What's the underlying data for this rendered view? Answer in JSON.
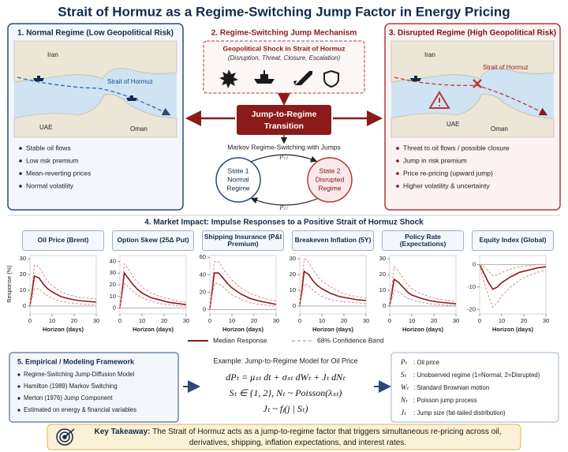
{
  "title": "Strait of Hormuz as a Regime-Switching Jump Factor in Energy Pricing",
  "normal_regime": {
    "heading": "1. Normal Regime (Low Geopolitical Risk)",
    "map_labels": [
      "Iran",
      "Strait of Hormuz",
      "UAE",
      "Oman"
    ],
    "bullets": [
      "Stable oil flows",
      "Low risk premium",
      "Mean-reverting prices",
      "Normal volatility"
    ]
  },
  "mechanism": {
    "heading": "2. Regime-Switching Jump Mechanism",
    "shock_title": "Geopolitical Shock in Strait of Hormuz",
    "shock_subtitle": "(Disruption, Threat, Closure, Escalation)",
    "transition": [
      "Jump-to-Regime",
      "Transition"
    ],
    "markov_title": "Markov Regime-Switching with Jumps",
    "state_1": [
      "State 1",
      "Normal",
      "Regime"
    ],
    "state_2": [
      "State 2",
      "Disrupted",
      "Regime"
    ],
    "p12": "p₁₂",
    "p21": "p₂₁"
  },
  "disrupted_regime": {
    "heading": "3. Disrupted Regime (High Geopolitical Risk)",
    "map_labels": [
      "Iran",
      "Strait of Hormuz",
      "UAE",
      "Oman"
    ],
    "bullets": [
      "Threat to oil flows / possible closure",
      "Jump in risk premium",
      "Price re-pricing (upward jump)",
      "Higher volatility & uncertainty"
    ]
  },
  "impulse_responses": {
    "heading": "4. Market Impact: Impulse Responses to a Positive Strait of Hormuz Shock",
    "y_label": "Response (%)",
    "legend": [
      {
        "label": "Median Response",
        "color": "#8b1a1a",
        "dashed": false
      },
      {
        "label": "68% Confidence Band",
        "color": "#e08a8a",
        "dashed": true
      }
    ]
  },
  "chart_data": [
    {
      "type": "line",
      "title": "Oil Price (Brent)",
      "x_label": "Horizon (days)",
      "x": [
        0,
        2,
        4,
        6,
        8,
        10,
        14,
        18,
        22,
        26,
        30
      ],
      "xlim": [
        0,
        30
      ],
      "xticks": [
        0,
        10,
        20,
        30
      ],
      "ylim": [
        -5,
        32
      ],
      "yticks": [
        0,
        10,
        20,
        30
      ],
      "series": [
        {
          "color": "#8b1a1a",
          "dashed": false,
          "values": [
            0,
            19,
            18,
            14,
            11,
            9,
            6,
            4.5,
            3.5,
            3,
            2.5
          ]
        },
        {
          "color": "#e08a8a",
          "dashed": true,
          "values": [
            0,
            26,
            25,
            20,
            16,
            13,
            9,
            7,
            5.5,
            5,
            4.5
          ]
        },
        {
          "color": "#e08a8a",
          "dashed": true,
          "values": [
            0,
            11,
            11,
            8.5,
            6.5,
            5,
            3,
            2,
            1.5,
            1,
            1
          ]
        }
      ]
    },
    {
      "type": "line",
      "title": "Option Skew (25Δ Put)",
      "x_label": "Horizon (days)",
      "x": [
        0,
        2,
        4,
        6,
        8,
        10,
        14,
        18,
        22,
        26,
        30
      ],
      "xlim": [
        0,
        30
      ],
      "xticks": [
        0,
        10,
        20,
        30
      ],
      "ylim": [
        -5,
        45
      ],
      "yticks": [
        0,
        10,
        20,
        30,
        40
      ],
      "series": [
        {
          "color": "#8b1a1a",
          "dashed": false,
          "values": [
            0,
            30,
            25,
            20,
            16,
            13,
            9,
            7,
            5,
            4,
            3
          ]
        },
        {
          "color": "#e08a8a",
          "dashed": true,
          "values": [
            0,
            38,
            33,
            27,
            22,
            18,
            13,
            10,
            8,
            6,
            5
          ]
        },
        {
          "color": "#e08a8a",
          "dashed": true,
          "values": [
            0,
            21,
            18,
            14,
            11,
            9,
            6,
            4,
            3,
            2,
            1.5
          ]
        }
      ]
    },
    {
      "type": "line",
      "title": "Shipping Insurance (P&I Premium)",
      "x_label": "Horizon (days)",
      "x": [
        0,
        2,
        4,
        6,
        8,
        10,
        14,
        18,
        22,
        26,
        30
      ],
      "xlim": [
        0,
        30
      ],
      "xticks": [
        0,
        10,
        20,
        30
      ],
      "ylim": [
        -5,
        62
      ],
      "yticks": [
        0,
        20,
        40,
        60
      ],
      "series": [
        {
          "color": "#8b1a1a",
          "dashed": false,
          "values": [
            0,
            42,
            42,
            36,
            30,
            25,
            18,
            13,
            10,
            8,
            6
          ]
        },
        {
          "color": "#e08a8a",
          "dashed": true,
          "values": [
            0,
            55,
            55,
            47,
            40,
            34,
            25,
            19,
            15,
            12,
            10
          ]
        },
        {
          "color": "#e08a8a",
          "dashed": true,
          "values": [
            0,
            30,
            30,
            26,
            21,
            17,
            12,
            8,
            6,
            5,
            4
          ]
        }
      ]
    },
    {
      "type": "line",
      "title": "Breakeven Inflation (5Y)",
      "x_label": "Horizon (days)",
      "x": [
        0,
        2,
        4,
        6,
        8,
        10,
        14,
        18,
        22,
        26,
        30
      ],
      "xlim": [
        0,
        30
      ],
      "xticks": [
        0,
        10,
        20,
        30
      ],
      "ylim": [
        -5,
        32
      ],
      "yticks": [
        0,
        10,
        20,
        30
      ],
      "series": [
        {
          "color": "#8b1a1a",
          "dashed": false,
          "values": [
            0,
            22,
            20,
            16,
            13,
            11,
            8,
            6,
            5,
            4,
            3.5
          ]
        },
        {
          "color": "#e08a8a",
          "dashed": true,
          "values": [
            0,
            30,
            28,
            23,
            19,
            16,
            12,
            9,
            7,
            6,
            5
          ]
        },
        {
          "color": "#e08a8a",
          "dashed": true,
          "values": [
            0,
            14,
            13,
            10,
            8,
            6,
            4,
            3,
            2.5,
            2,
            1.5
          ]
        }
      ]
    },
    {
      "type": "line",
      "title": "Policy Rate (Expectations)",
      "x_label": "Horizon (days)",
      "x": [
        0,
        2,
        4,
        6,
        8,
        10,
        14,
        18,
        22,
        26,
        30
      ],
      "xlim": [
        0,
        30
      ],
      "xticks": [
        0,
        10,
        20,
        30
      ],
      "ylim": [
        -5,
        32
      ],
      "yticks": [
        0,
        10,
        20,
        30
      ],
      "series": [
        {
          "color": "#8b1a1a",
          "dashed": false,
          "values": [
            0,
            17,
            15,
            12,
            9,
            7,
            5,
            3.5,
            2.5,
            2,
            1.5
          ]
        },
        {
          "color": "#e08a8a",
          "dashed": true,
          "values": [
            0,
            25,
            22,
            18,
            14,
            11,
            8,
            6,
            4.5,
            3.5,
            3
          ]
        },
        {
          "color": "#e08a8a",
          "dashed": true,
          "values": [
            0,
            10,
            9,
            7,
            5,
            4,
            2.5,
            1.5,
            1,
            0.5,
            0.5
          ]
        }
      ]
    },
    {
      "type": "line",
      "title": "Equity Index (Global)",
      "x_label": "Horizon (days)",
      "x": [
        0,
        2,
        4,
        6,
        8,
        10,
        14,
        18,
        22,
        26,
        30
      ],
      "xlim": [
        0,
        30
      ],
      "xticks": [
        0,
        10,
        20,
        30
      ],
      "ylim": [
        -22,
        4
      ],
      "yticks": [
        0,
        -10,
        -20
      ],
      "series": [
        {
          "color": "#8b1a1a",
          "dashed": false,
          "values": [
            0,
            -4,
            -8,
            -11,
            -10,
            -8,
            -5.5,
            -3.5,
            -2.5,
            -1.5,
            -1
          ]
        },
        {
          "color": "#e08a8a",
          "dashed": true,
          "values": [
            0,
            -1,
            -3,
            -5,
            -4.5,
            -3.5,
            -2,
            -1,
            -0.5,
            0,
            0
          ]
        },
        {
          "color": "#e08a8a",
          "dashed": true,
          "values": [
            0,
            -8,
            -14,
            -19,
            -17,
            -14,
            -10,
            -7,
            -5,
            -3.5,
            -2.5
          ]
        }
      ]
    }
  ],
  "framework": {
    "heading": "5. Empirical / Modeling Framework",
    "bullets": [
      "Regime-Switching Jump-Diffusion Model",
      "Hamilton (1989) Markov Switching",
      "Merton (1976) Jump Component",
      "Estimated on energy & financial variables"
    ],
    "example_title": "Example: Jump-to-Regime Model for Oil Price",
    "equations": [
      "dPₜ = μₛₜ dt + σₛₜ dWₜ + Jₜ dNₜ",
      "Sₜ ∈ {1, 2},   Nₜ ~ Poisson(λₛₜ)",
      "Jₜ ~ fⱼ(j | Sₜ)"
    ],
    "definitions": [
      {
        "symbol": "Pₜ",
        "text": ": Oil price"
      },
      {
        "symbol": "Sₜ",
        "text": ": Unobserved regime (1=Normal, 2=Disrupted)"
      },
      {
        "symbol": "Wₜ",
        "text": ": Standard Brownian motion"
      },
      {
        "symbol": "Nₜ",
        "text": ": Poisson jump process"
      },
      {
        "symbol": "Jₜ",
        "text": ": Jump size (fat-tailed distribution)"
      }
    ]
  },
  "takeaway": {
    "label": "Key Takeaway:",
    "text": "The Strait of Hormuz acts as a jump-to-regime factor that triggers simultaneous re-pricing across oil, derivatives, shipping, inflation expectations, and interest rates."
  }
}
